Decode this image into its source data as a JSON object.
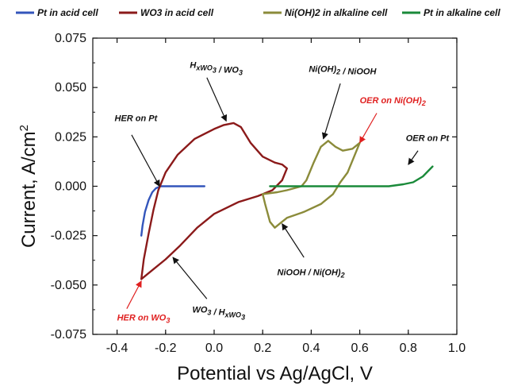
{
  "chart_data": {
    "type": "line",
    "xlabel": "Potential vs Ag/AgCl, V",
    "ylabel_main": "Current, A/cm",
    "ylabel_sup": "2",
    "xlim": [
      -0.5,
      1.0
    ],
    "ylim": [
      -0.075,
      0.075
    ],
    "x_ticks": [
      -0.4,
      -0.2,
      0.0,
      0.2,
      0.4,
      0.6,
      0.8,
      1.0
    ],
    "x_tick_labels": [
      "-0.4",
      "-0.2",
      "0.0",
      "0.2",
      "0.4",
      "0.6",
      "0.8",
      "1.0"
    ],
    "y_ticks": [
      -0.075,
      -0.05,
      -0.025,
      0.0,
      0.025,
      0.05,
      0.075
    ],
    "y_tick_labels": [
      "-0.075",
      "-0.050",
      "-0.025",
      "0.000",
      "0.025",
      "0.050",
      "0.075"
    ],
    "grid": false,
    "legend_position": "top",
    "series": [
      {
        "name": "Pt in acid cell",
        "color": "#3355bb",
        "points": [
          [
            -0.3,
            -0.025
          ],
          [
            -0.295,
            -0.02
          ],
          [
            -0.285,
            -0.013
          ],
          [
            -0.27,
            -0.007
          ],
          [
            -0.255,
            -0.003
          ],
          [
            -0.24,
            -0.001
          ],
          [
            -0.22,
            0.0
          ],
          [
            -0.18,
            0.0
          ],
          [
            -0.1,
            0.0
          ],
          [
            -0.04,
            0.0
          ]
        ]
      },
      {
        "name": "WO3 in acid cell",
        "color": "#8b1a1a",
        "points": [
          [
            -0.3,
            -0.047
          ],
          [
            -0.29,
            -0.037
          ],
          [
            -0.27,
            -0.024
          ],
          [
            -0.25,
            -0.012
          ],
          [
            -0.23,
            -0.002
          ],
          [
            -0.2,
            0.007
          ],
          [
            -0.15,
            0.016
          ],
          [
            -0.08,
            0.024
          ],
          [
            0.0,
            0.029
          ],
          [
            0.04,
            0.031
          ],
          [
            0.08,
            0.032
          ],
          [
            0.11,
            0.03
          ],
          [
            0.15,
            0.022
          ],
          [
            0.2,
            0.015
          ],
          [
            0.25,
            0.012
          ],
          [
            0.28,
            0.011
          ],
          [
            0.3,
            0.009
          ],
          [
            0.28,
            0.003
          ],
          [
            0.24,
            -0.002
          ],
          [
            0.18,
            -0.005
          ],
          [
            0.1,
            -0.008
          ],
          [
            0.0,
            -0.014
          ],
          [
            -0.07,
            -0.021
          ],
          [
            -0.14,
            -0.03
          ],
          [
            -0.2,
            -0.037
          ],
          [
            -0.25,
            -0.042
          ],
          [
            -0.28,
            -0.045
          ],
          [
            -0.3,
            -0.047
          ]
        ]
      },
      {
        "name": "Ni(OH)2 in alkaline cell",
        "color": "#8b8b3a",
        "points": [
          [
            0.2,
            -0.004
          ],
          [
            0.26,
            -0.003
          ],
          [
            0.3,
            -0.002
          ],
          [
            0.33,
            -0.001
          ],
          [
            0.36,
            0.0
          ],
          [
            0.38,
            0.003
          ],
          [
            0.41,
            0.012
          ],
          [
            0.44,
            0.02
          ],
          [
            0.47,
            0.023
          ],
          [
            0.5,
            0.02
          ],
          [
            0.53,
            0.018
          ],
          [
            0.57,
            0.019
          ],
          [
            0.6,
            0.022
          ],
          [
            0.58,
            0.016
          ],
          [
            0.55,
            0.007
          ],
          [
            0.52,
            0.002
          ],
          [
            0.49,
            -0.004
          ],
          [
            0.44,
            -0.009
          ],
          [
            0.37,
            -0.013
          ],
          [
            0.3,
            -0.016
          ],
          [
            0.27,
            -0.019
          ],
          [
            0.25,
            -0.021
          ],
          [
            0.23,
            -0.018
          ],
          [
            0.21,
            -0.009
          ],
          [
            0.2,
            -0.004
          ]
        ]
      },
      {
        "name": "Pt in alkaline cell",
        "color": "#1a8a3a",
        "points": [
          [
            0.23,
            0.0
          ],
          [
            0.4,
            0.0
          ],
          [
            0.6,
            0.0
          ],
          [
            0.72,
            0.0
          ],
          [
            0.78,
            0.001
          ],
          [
            0.82,
            0.002
          ],
          [
            0.86,
            0.005
          ],
          [
            0.9,
            0.01
          ]
        ]
      }
    ],
    "annotations": [
      {
        "text": "HER on Pt",
        "sub": "",
        "color": "#111111",
        "text_at": [
          -0.41,
          0.033
        ],
        "arrow_from": [
          -0.34,
          0.026
        ],
        "arrow_to": [
          -0.225,
          0.0
        ]
      },
      {
        "text": "H_xWO_3 / WO_3",
        "sub": "",
        "color": "#111111",
        "text_at": [
          -0.1,
          0.06
        ],
        "arrow_from": [
          -0.03,
          0.055
        ],
        "arrow_to": [
          0.05,
          0.033
        ]
      },
      {
        "text": "Ni(OH)_2 / NiOOH",
        "sub": "",
        "color": "#111111",
        "text_at": [
          0.39,
          0.058
        ],
        "arrow_from": [
          0.52,
          0.052
        ],
        "arrow_to": [
          0.45,
          0.024
        ]
      },
      {
        "text": "OER on Ni(OH)_2",
        "sub": "",
        "color": "#e02020",
        "text_at": [
          0.6,
          0.042
        ],
        "arrow_from": [
          0.67,
          0.037
        ],
        "arrow_to": [
          0.6,
          0.022
        ]
      },
      {
        "text": "OER on Pt",
        "sub": "",
        "color": "#111111",
        "text_at": [
          0.79,
          0.023
        ],
        "arrow_from": [
          0.84,
          0.018
        ],
        "arrow_to": [
          0.8,
          0.011
        ]
      },
      {
        "text": "NiOOH / Ni(OH)_2",
        "sub": "",
        "color": "#111111",
        "text_at": [
          0.26,
          -0.045
        ],
        "arrow_from": [
          0.37,
          -0.036
        ],
        "arrow_to": [
          0.28,
          -0.019
        ]
      },
      {
        "text": "WO_3 / H_xWO_3",
        "sub": "",
        "color": "#111111",
        "text_at": [
          -0.09,
          -0.064
        ],
        "arrow_from": [
          -0.03,
          -0.057
        ],
        "arrow_to": [
          -0.17,
          -0.036
        ]
      },
      {
        "text": "HER on WO_3",
        "sub": "",
        "color": "#e02020",
        "text_at": [
          -0.4,
          -0.068
        ],
        "arrow_from": [
          -0.36,
          -0.062
        ],
        "arrow_to": [
          -0.3,
          -0.048
        ]
      }
    ]
  }
}
